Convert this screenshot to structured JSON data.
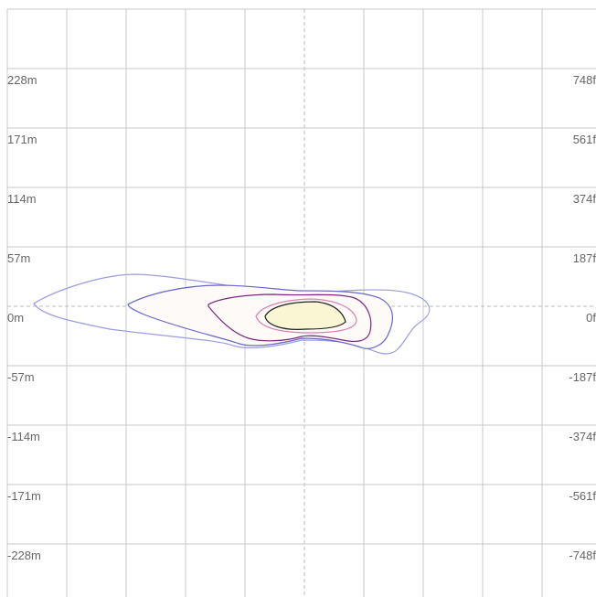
{
  "left_labels": [
    "228m",
    "171m",
    "114m",
    "57m",
    "0m",
    "-57m",
    "-114m",
    "-171m",
    "-228m"
  ],
  "right_labels": [
    "748f",
    "561f",
    "374f",
    "187f",
    "0f",
    "-187f",
    "-374f",
    "-561f",
    "-748f"
  ]
}
